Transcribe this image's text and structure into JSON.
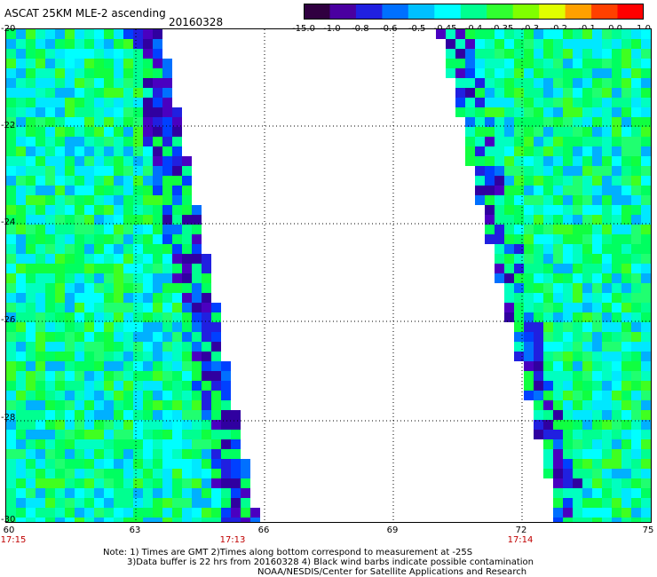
{
  "title": "ASCAT 25KM MLE-2 ascending",
  "date": "20160328",
  "colorbar": {
    "labels": [
      "-15.0",
      "-1.0",
      "-0.8",
      "-0.6",
      "-0.5",
      "-0.45",
      "-0.4",
      "-0.35",
      "-0.3",
      "-0.2",
      "-0.1",
      "0.0",
      "1.0"
    ],
    "colors": [
      "#300040",
      "#4a00a0",
      "#2020e0",
      "#0070ff",
      "#00c0ff",
      "#00ffff",
      "#00ff90",
      "#30ff30",
      "#80ff00",
      "#e0ff00",
      "#ffa000",
      "#ff4000",
      "#ff0000"
    ]
  },
  "axes": {
    "lat_labels": [
      "-20",
      "-22",
      "-24",
      "-26",
      "-28",
      "-30"
    ],
    "lon_labels": [
      "60",
      "63",
      "66",
      "69",
      "72",
      "75"
    ],
    "time_labels": [
      "17:15",
      "17:13",
      "17:14"
    ]
  },
  "notes": {
    "line1": "Note: 1) Times are GMT 2)Times along bottom correspond to measurement at -25S",
    "line2": "3)Data buffer is 22 hrs from 20160328 4) Black wind barbs indicate possible contamination",
    "line3": "NOAA/NESDIS/Center for Satellite Applications and Research"
  }
}
